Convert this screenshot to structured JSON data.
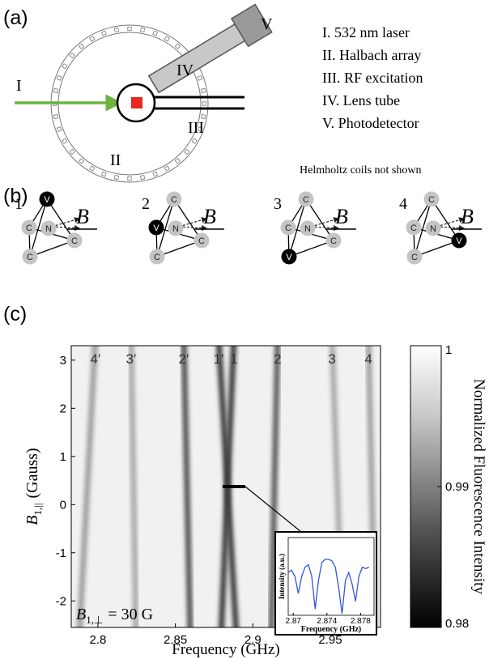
{
  "panel_labels": [
    "(a)",
    "(b)",
    "(c)"
  ],
  "panel_a": {
    "setup_labels": [
      "I",
      "II",
      "III",
      "IV",
      "V"
    ],
    "legend": [
      "I. 532 nm laser",
      "II. Halbach array",
      "III. RF excitation",
      "IV. Lens tube",
      "V. Photodetector"
    ],
    "note": "Helmholtz coils not shown"
  },
  "panel_b": {
    "structures": [
      {
        "number": "1",
        "field": "B",
        "atoms": [
          "V",
          "C",
          "N",
          "C",
          "C"
        ]
      },
      {
        "number": "2",
        "field": "B",
        "atoms": [
          "C",
          "V",
          "N",
          "C",
          "C"
        ]
      },
      {
        "number": "3",
        "field": "B",
        "atoms": [
          "C",
          "C",
          "N",
          "C",
          "V"
        ]
      },
      {
        "number": "4",
        "field": "B",
        "atoms": [
          "C",
          "C",
          "N",
          "V",
          "C"
        ]
      }
    ]
  },
  "chart_data": {
    "type": "heatmap",
    "x_label": "Frequency (GHz)",
    "y_label": {
      "symbol": "B",
      "subscript": "1,||",
      "unit": "(Gauss)"
    },
    "annotation": {
      "symbol": "B",
      "subscript": "1,⊥",
      "text": "= 30 G"
    },
    "xlim": [
      2.7828,
      2.9824
    ],
    "xticks": [
      2.8,
      2.85,
      2.9,
      2.95
    ],
    "ylim": [
      -2.55,
      3.3
    ],
    "yticks": [
      -2,
      -1,
      0,
      1,
      2,
      3
    ],
    "resonances": [
      {
        "label": "4′",
        "x_at_top": 2.7984,
        "x_at_bottom": 2.788,
        "color": "#9c9c9c"
      },
      {
        "label": "3′",
        "x_at_top": 2.8214,
        "x_at_bottom": 2.8246,
        "color": "#a8a8a8"
      },
      {
        "label": "2′",
        "x_at_top": 2.8554,
        "x_at_bottom": 2.8596,
        "color": "#505050"
      },
      {
        "label": "1′",
        "x_at_top": 2.8779,
        "x_at_bottom": 2.8894,
        "color": "#383838"
      },
      {
        "label": "1",
        "x_at_top": 2.8878,
        "x_at_bottom": 2.8795,
        "color": "#383838"
      },
      {
        "label": "2",
        "x_at_top": 2.916,
        "x_at_bottom": 2.9119,
        "color": "#5a5a5a"
      },
      {
        "label": "3",
        "x_at_top": 2.9511,
        "x_at_bottom": 2.9579,
        "color": "#a8a8a8"
      },
      {
        "label": "4",
        "x_at_top": 2.9746,
        "x_at_bottom": 2.9788,
        "color": "#a0a0a0"
      }
    ],
    "colorbar": {
      "label": "Normalized Fluorescence Intensity",
      "lim": [
        0.98,
        1
      ],
      "ticks": [
        0.98,
        0.99,
        1
      ]
    },
    "inset": {
      "type": "line",
      "x_label": "Frequency (GHz)",
      "y_label": "Intensity (a.u.)",
      "xlim": [
        2.8694,
        2.8796
      ],
      "xticks": [
        2.87,
        2.874,
        2.878
      ],
      "ylim": [
        0,
        1
      ],
      "color": "#3355dd",
      "x": [
        2.8694,
        2.8698,
        2.8702,
        2.8706,
        2.871,
        2.8714,
        2.8718,
        2.8722,
        2.8726,
        2.873,
        2.8734,
        2.8738,
        2.8742,
        2.8746,
        2.875,
        2.8754,
        2.8758,
        2.8762,
        2.8766,
        2.877,
        2.8774,
        2.8778,
        2.8782,
        2.8786,
        2.879
      ],
      "values": [
        0.55,
        0.58,
        0.5,
        0.28,
        0.5,
        0.62,
        0.65,
        0.5,
        0.08,
        0.45,
        0.68,
        0.72,
        0.72,
        0.7,
        0.62,
        0.35,
        0.02,
        0.45,
        0.55,
        0.4,
        0.18,
        0.5,
        0.62,
        0.6,
        0.62
      ]
    }
  }
}
